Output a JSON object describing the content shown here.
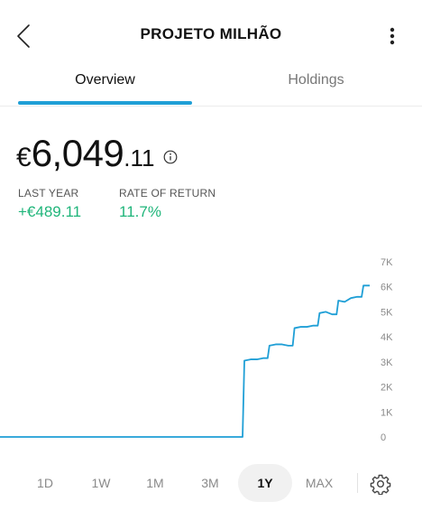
{
  "header": {
    "title": "PROJETO MILHÃO",
    "back_icon": "chevron-left-icon",
    "menu_icon": "more-vertical-icon"
  },
  "tabs": [
    {
      "label": "Overview",
      "active": true
    },
    {
      "label": "Holdings",
      "active": false
    }
  ],
  "balance": {
    "currency": "€",
    "integer": "6,049",
    "cents": ".11",
    "info_icon": "info-icon"
  },
  "stats": [
    {
      "label": "LAST YEAR",
      "value": "+€489.11"
    },
    {
      "label": "RATE OF RETURN",
      "value": "11.7%"
    }
  ],
  "colors": {
    "accent": "#1f9fd6",
    "positive": "#1fb57a",
    "line": "#1f9fd6"
  },
  "ranges": [
    {
      "label": "1D",
      "active": false
    },
    {
      "label": "1W",
      "active": false
    },
    {
      "label": "1M",
      "active": false
    },
    {
      "label": "3M",
      "active": false
    },
    {
      "label": "1Y",
      "active": true
    },
    {
      "label": "MAX",
      "active": false
    }
  ],
  "settings_icon": "gear-icon",
  "chart_data": {
    "type": "line",
    "xlabel": "",
    "ylabel": "",
    "ylim": [
      0,
      7000
    ],
    "y_ticks": [
      "0",
      "1K",
      "2K",
      "3K",
      "4K",
      "5K",
      "6K",
      "7K"
    ],
    "grid": false,
    "x_period": "1Y",
    "series": [
      {
        "values": [
          0,
          0,
          0,
          0,
          0,
          0,
          0,
          0,
          0,
          0,
          0,
          0,
          0,
          0,
          0,
          0,
          0,
          0,
          0,
          0,
          0,
          0,
          0,
          0,
          0,
          0,
          0,
          0,
          0,
          0,
          0,
          0,
          0,
          0,
          0,
          0,
          0,
          0,
          0,
          3050,
          3100,
          3100,
          3150,
          3650,
          3700,
          3700,
          3650,
          4350,
          4400,
          4400,
          4450,
          4950,
          5000,
          4900,
          5450,
          5400,
          5550,
          5600,
          6050,
          6050
        ]
      }
    ]
  }
}
